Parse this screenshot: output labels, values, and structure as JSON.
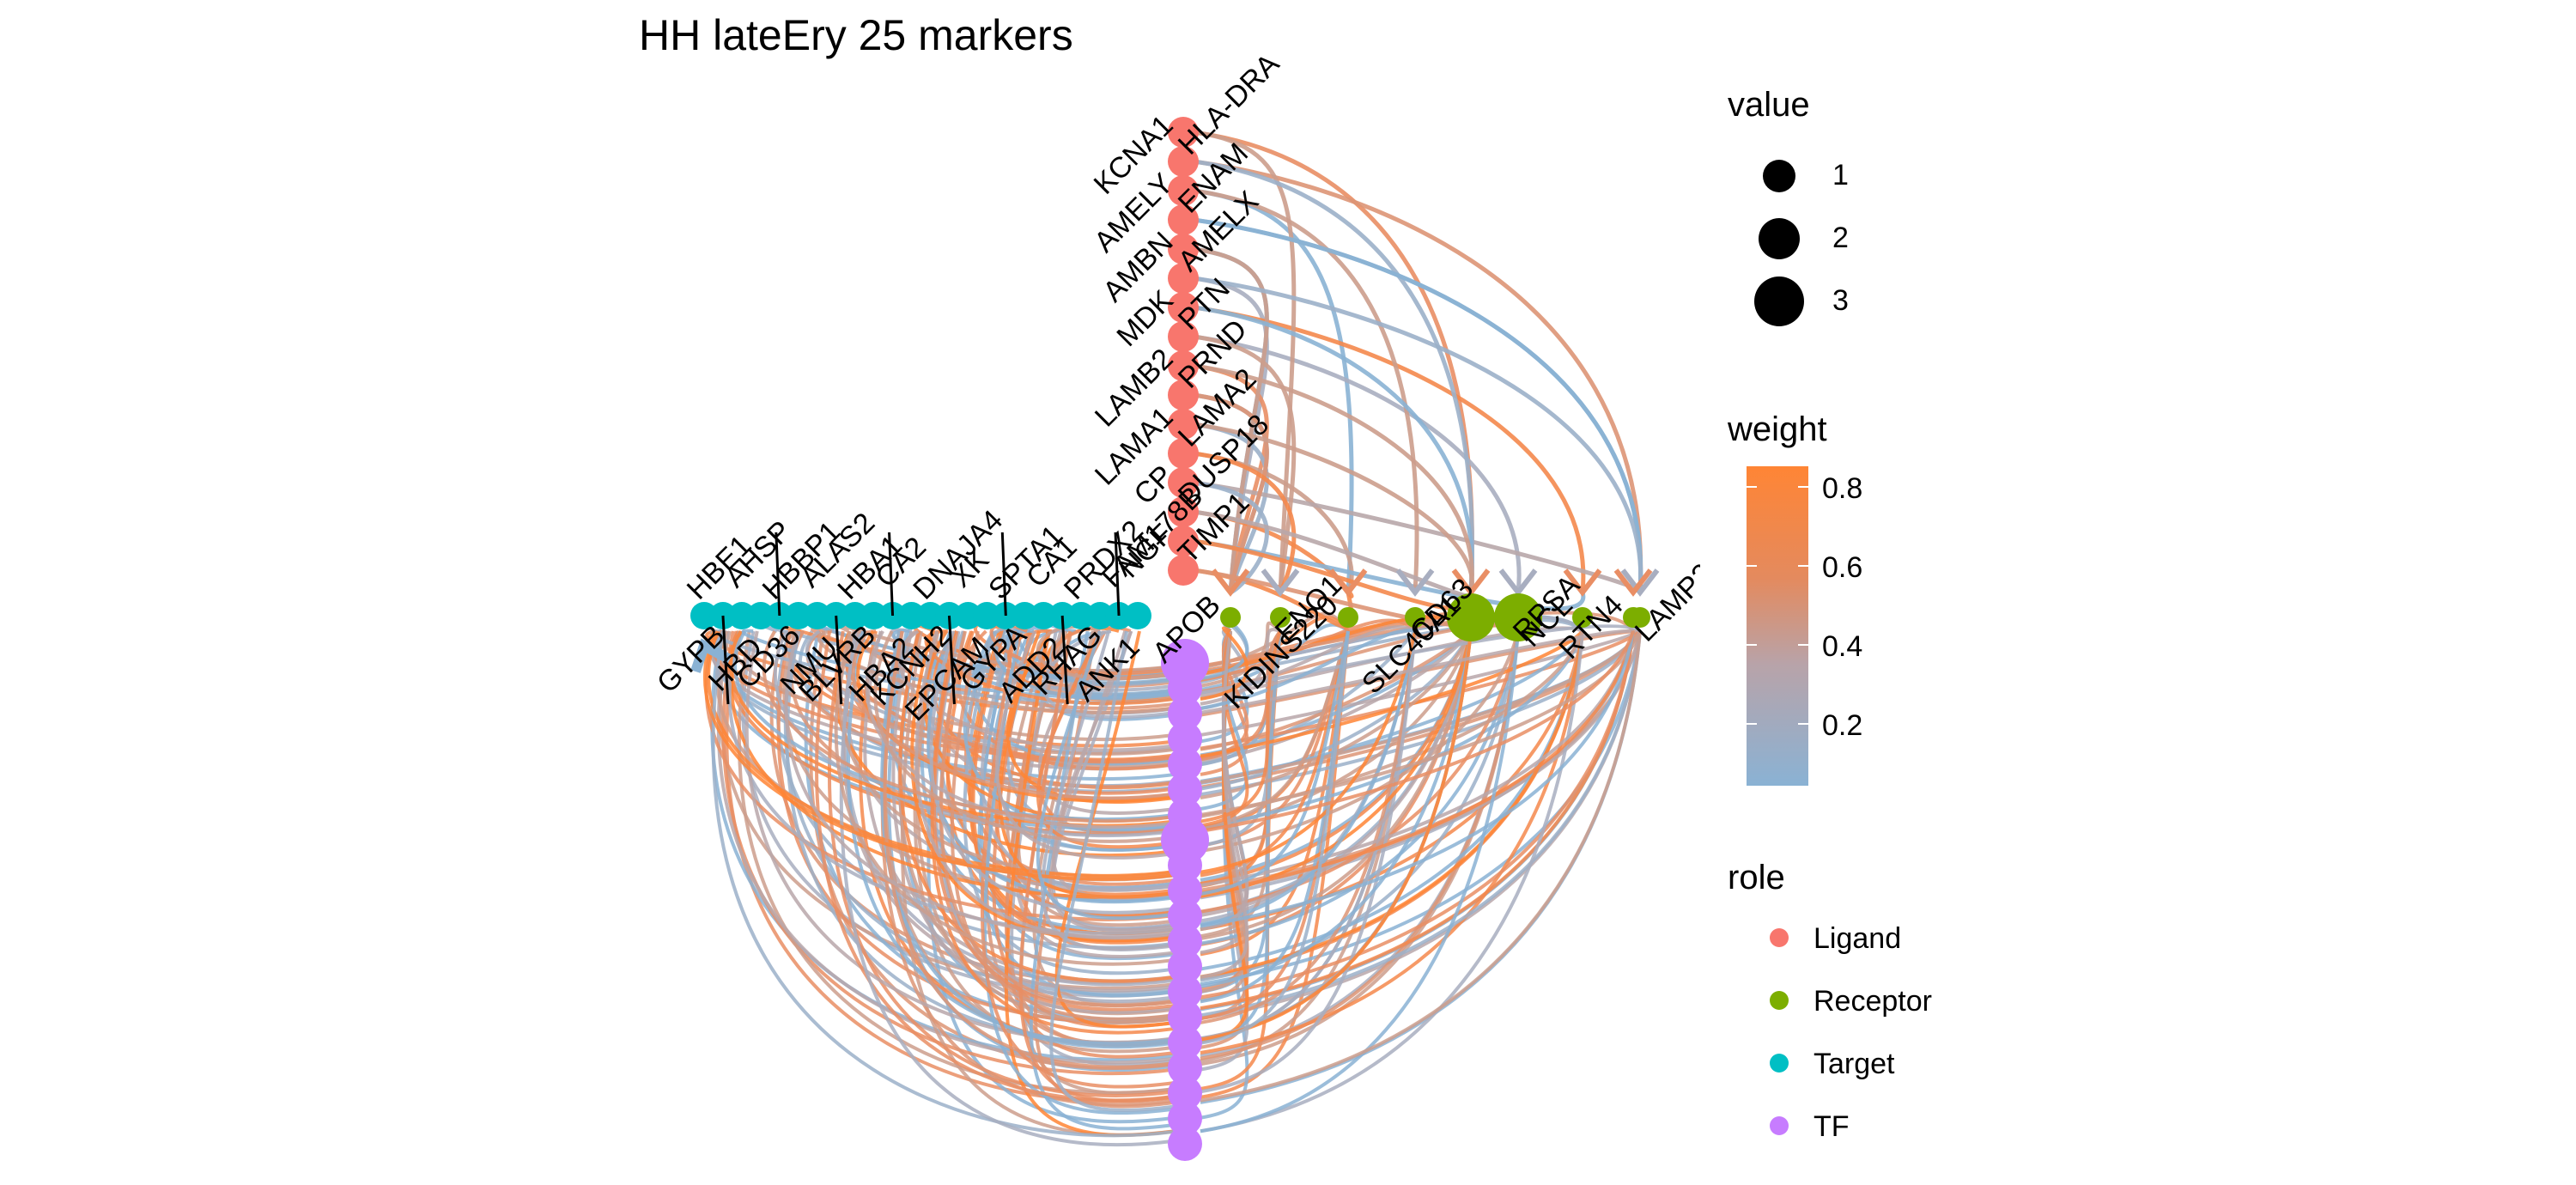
{
  "title": "HH lateEry 25 markers",
  "colors": {
    "Ligand": "#F8766D",
    "Receptor": "#7CAE00",
    "Target": "#00BFC4",
    "TF": "#C77CFF",
    "weight_low": "#8AB2D4",
    "weight_high": "#FF8535"
  },
  "ligands": [
    "KCNA1",
    "HLA-DRA",
    "AMELY",
    "ENAM",
    "AMBN",
    "AMELX",
    "MDK",
    "PTN",
    "LAMB2",
    "PRND",
    "LAMA1",
    "LAMA2",
    "CP",
    "DUSP18",
    "NGF",
    "TIMP1"
  ],
  "receptors": [
    {
      "name": "APOB",
      "value": 1
    },
    {
      "name": "ENO1",
      "value": 1
    },
    {
      "name": "KIDINS220",
      "value": 1
    },
    {
      "name": "CD63",
      "value": 1
    },
    {
      "name": "SLC40A1",
      "value": 3
    },
    {
      "name": "RPSA",
      "value": 3
    },
    {
      "name": "NCL",
      "value": 1
    },
    {
      "name": "LAMP2",
      "value": 1
    },
    {
      "name": "RTN4",
      "value": 1
    }
  ],
  "targets": [
    "HBE1",
    "GYPB",
    "AHSP",
    "HBD",
    "HBBP1",
    "CD36",
    "ALAS2",
    "NMU",
    "HBA1",
    "BLVRB",
    "CA2",
    "HBA2",
    "DNAJA4",
    "KCNH2",
    "XK",
    "EPCAM",
    "SPTA1",
    "GYPA",
    "CA1",
    "ADD2",
    "PRDX2",
    "RHAG",
    "FAM178B",
    "ANK1"
  ],
  "legend": {
    "value_title": "value",
    "value_items": [
      "1",
      "2",
      "3"
    ],
    "weight_title": "weight",
    "weight_ticks": [
      "0.8",
      "0.6",
      "0.4",
      "0.2"
    ],
    "role_title": "role",
    "role_items": [
      "Ligand",
      "Receptor",
      "Target",
      "TF"
    ]
  }
}
